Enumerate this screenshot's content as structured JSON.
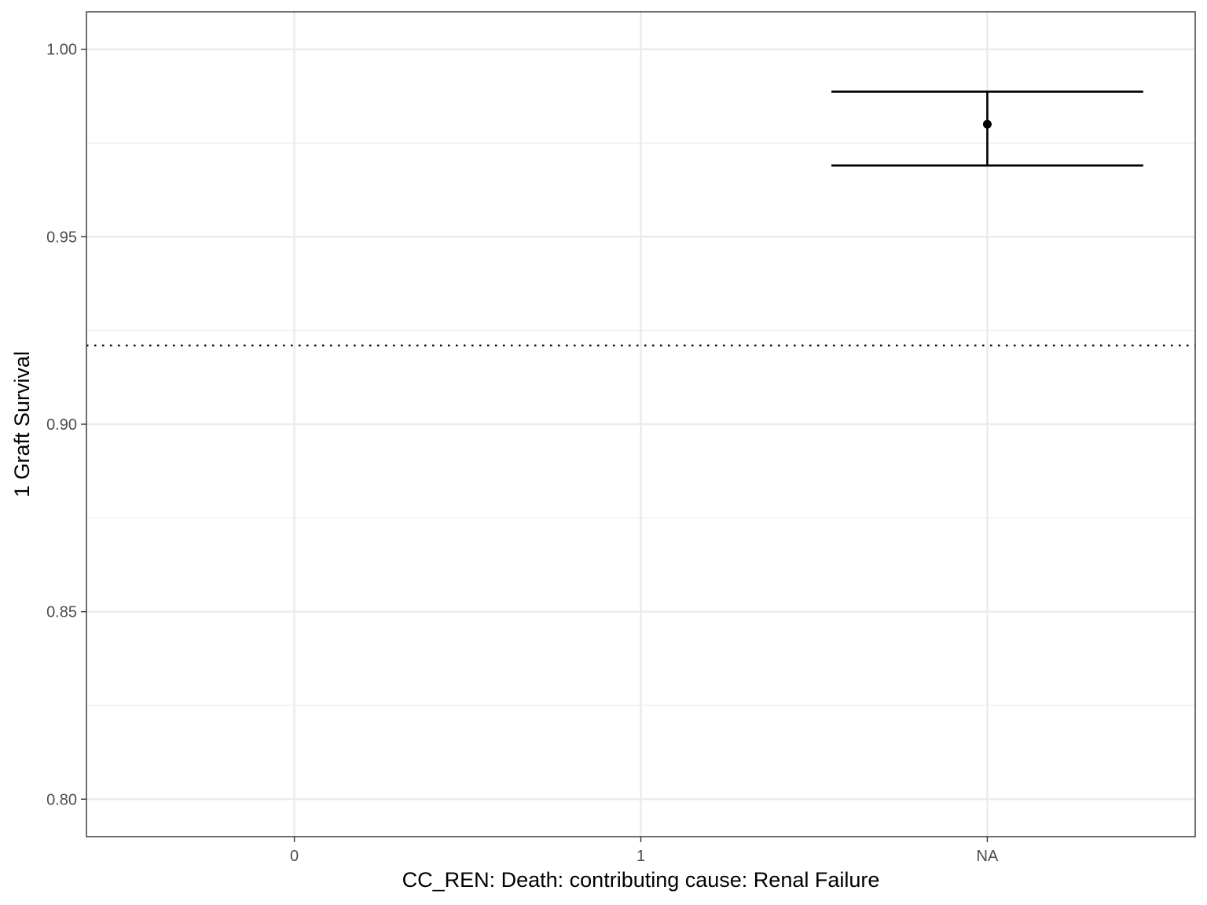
{
  "chart_data": {
    "type": "errorbar",
    "title": "",
    "xlabel": "CC_REN: Death: contributing cause: Renal Failure",
    "ylabel": "1 Graft Survival",
    "categories": [
      "0",
      "1",
      "NA"
    ],
    "ylim": [
      0.79,
      1.01
    ],
    "yticks": [
      0.8,
      0.85,
      0.9,
      0.95,
      1.0
    ],
    "ytick_labels": [
      "0.80",
      "0.85",
      "0.90",
      "0.95",
      "1.00"
    ],
    "y_minor_ticks": [
      0.825,
      0.875,
      0.925,
      0.975
    ],
    "grid": true,
    "reference_line": {
      "y": 0.921,
      "style": "dotted"
    },
    "points": [
      {
        "category": "NA",
        "y": 0.98,
        "ymin": 0.969,
        "ymax": 0.9887
      }
    ],
    "colors": {
      "grid": "#ebebeb",
      "panel_border": "#333333",
      "point": "#000000",
      "tick_text": "#4d4d4d"
    }
  }
}
